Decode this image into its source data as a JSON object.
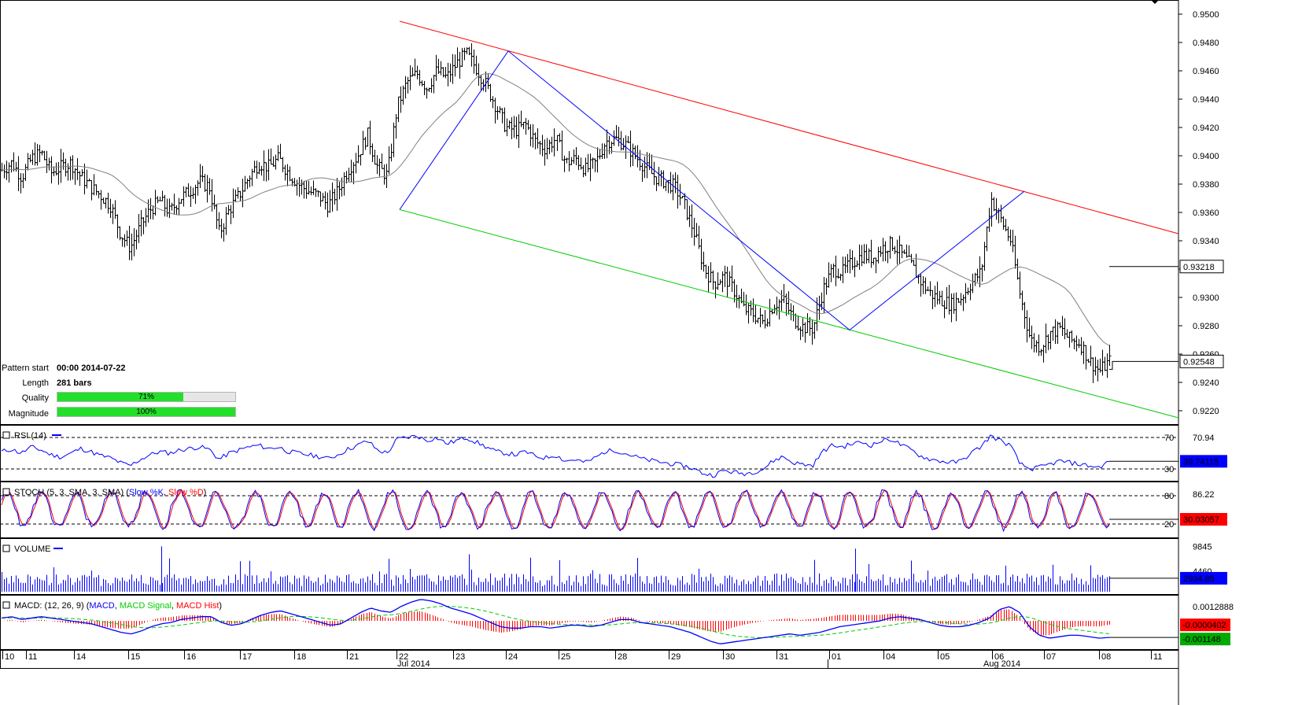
{
  "pattern_info": {
    "start_label": "Pattern start",
    "start_value": "00:00 2014-07-22",
    "length_label": "Length",
    "length_value": "281 bars",
    "quality_label": "Quality",
    "quality_value": 71,
    "quality_text": "71%",
    "magnitude_label": "Magnitude",
    "magnitude_value": 100,
    "magnitude_text": "100%"
  },
  "colors": {
    "price": "#000000",
    "channel_upper": "#ff0000",
    "channel_lower": "#00cc00",
    "zigzag": "#0000ff",
    "moving_average": "#808080",
    "rsi": "#0000ff",
    "stoch_k": "#0000ff",
    "stoch_d": "#ff0000",
    "volume": "#0000ff",
    "macd": "#0000ff",
    "macd_signal": "#00cc00",
    "macd_hist": "#ff0000",
    "label_box": "#0000ff",
    "label_box_red": "#ff0000",
    "label_box_green": "#00aa00",
    "quality_bar": "#22e02a"
  },
  "chart_data": [
    {
      "type": "candlestick",
      "panel": "price",
      "ylim": [
        0.921,
        0.951
      ],
      "yticks": [
        "0.9500",
        "0.9480",
        "0.9460",
        "0.9440",
        "0.9420",
        "0.9400",
        "0.9380",
        "0.9360",
        "0.9340",
        "0.9320",
        "0.9300",
        "0.9280",
        "0.9260",
        "0.9240",
        "0.9220"
      ],
      "last_price_label": "0.92548",
      "last_price": 0.92548,
      "ma_label": "0.93218",
      "ma_value": 0.93218,
      "channel_upper": [
        [
          0,
          0.9495
        ],
        [
          1,
          0.9345
        ]
      ],
      "channel_lower": [
        [
          0,
          0.9362
        ],
        [
          1,
          0.9215
        ]
      ],
      "zigzag": [
        0.9362,
        0.9474,
        0.9277,
        0.9375
      ],
      "price_path": [
        0.939,
        0.9395,
        0.9385,
        0.9398,
        0.9402,
        0.9388,
        0.9392,
        0.9395,
        0.9385,
        0.9378,
        0.9372,
        0.9365,
        0.9345,
        0.9335,
        0.935,
        0.9362,
        0.9368,
        0.936,
        0.937,
        0.9375,
        0.9382,
        0.9378,
        0.9345,
        0.9362,
        0.9372,
        0.9385,
        0.9395,
        0.9392,
        0.9398,
        0.9388,
        0.938,
        0.9375,
        0.9372,
        0.9365,
        0.9375,
        0.939,
        0.94,
        0.9415,
        0.9392,
        0.9386,
        0.9435,
        0.9452,
        0.9458,
        0.9448,
        0.946,
        0.9455,
        0.9465,
        0.9472,
        0.9462,
        0.945,
        0.9435,
        0.942,
        0.9418,
        0.9422,
        0.941,
        0.9405,
        0.9412,
        0.9395,
        0.9398,
        0.939,
        0.9395,
        0.941,
        0.9412,
        0.9408,
        0.94,
        0.9392,
        0.9385,
        0.9382,
        0.9378,
        0.9365,
        0.9345,
        0.932,
        0.931,
        0.9315,
        0.9305,
        0.9292,
        0.9288,
        0.9282,
        0.9295,
        0.9298,
        0.9285,
        0.9279,
        0.9278,
        0.9305,
        0.932,
        0.9318,
        0.9325,
        0.933,
        0.9328,
        0.9335,
        0.9338,
        0.933,
        0.9322,
        0.931,
        0.9302,
        0.9298,
        0.9295,
        0.93,
        0.931,
        0.9318,
        0.937,
        0.9355,
        0.934,
        0.93,
        0.927,
        0.9265,
        0.9275,
        0.9278,
        0.927,
        0.9268,
        0.9255,
        0.9248,
        0.9255
      ]
    },
    {
      "type": "line",
      "panel": "rsi",
      "label": "RSI (14)",
      "ylim": [
        20,
        80
      ],
      "levels": [
        "70",
        "30"
      ],
      "level_values": [
        70,
        30
      ],
      "right_top": "70.94",
      "current_label": "39.74115",
      "values": [
        52,
        55,
        50,
        58,
        54,
        48,
        45,
        50,
        56,
        52,
        47,
        44,
        38,
        34,
        42,
        48,
        52,
        50,
        54,
        56,
        58,
        55,
        42,
        50,
        54,
        58,
        60,
        56,
        58,
        52,
        50,
        48,
        46,
        43,
        48,
        55,
        60,
        66,
        54,
        50,
        68,
        70,
        72,
        66,
        70,
        62,
        66,
        70,
        64,
        58,
        52,
        50,
        48,
        52,
        46,
        44,
        48,
        40,
        42,
        38,
        44,
        52,
        54,
        50,
        46,
        42,
        40,
        38,
        36,
        34,
        30,
        24,
        22,
        28,
        26,
        24,
        26,
        30,
        40,
        46,
        38,
        36,
        34,
        52,
        60,
        58,
        62,
        64,
        60,
        66,
        68,
        60,
        54,
        46,
        42,
        40,
        38,
        40,
        50,
        58,
        72,
        66,
        60,
        36,
        30,
        32,
        36,
        40,
        38,
        36,
        34,
        32,
        39.7
      ]
    },
    {
      "type": "line",
      "panel": "stoch",
      "label": "STOCH (5, 3, SMA, 3, SMA)",
      "series_labels": [
        "Slow %K",
        "Slow %D"
      ],
      "ylim": [
        0,
        100
      ],
      "levels": [
        "80",
        "20"
      ],
      "level_values": [
        80,
        20
      ],
      "right_top": "86.22",
      "current_label": "30.03057"
    },
    {
      "type": "bar",
      "panel": "volume",
      "label": "VOLUME",
      "ylim": [
        0,
        11000
      ],
      "ticks": [
        "9845",
        "4460"
      ],
      "current_label": "2934.85",
      "current_value": 2934.85
    },
    {
      "type": "line",
      "panel": "macd",
      "label": "MACD: (12, 26, 9)",
      "series_labels": [
        "MACD",
        "MACD Signal",
        "MACD Hist"
      ],
      "ylim": [
        -0.0018,
        0.0016
      ],
      "tick_top": "0.0012888",
      "hist_label": "-0.0000402",
      "macd_label": "-0.001148",
      "values": [
        0.0002,
        0.0003,
        0.0001,
        0.0002,
        0.0003,
        0.0002,
        0.0001,
        0.0,
        -0.0001,
        -0.0002,
        -0.0004,
        -0.0006,
        -0.0008,
        -0.0009,
        -0.0007,
        -0.0004,
        -0.0002,
        -0.0001,
        0.0001,
        0.0002,
        0.0003,
        0.0003,
        -0.0001,
        -0.0003,
        -0.0002,
        0.0001,
        0.0004,
        0.0006,
        0.0007,
        0.0005,
        0.0003,
        0.0001,
        -0.0001,
        -0.0003,
        -0.0002,
        0.0002,
        0.0006,
        0.0009,
        0.0007,
        0.0006,
        0.001,
        0.0013,
        0.0015,
        0.0014,
        0.0012,
        0.0009,
        0.0007,
        0.0005,
        0.0002,
        -0.0001,
        -0.0004,
        -0.0005,
        -0.0005,
        -0.0004,
        -0.0004,
        -0.0005,
        -0.0004,
        -0.0003,
        -0.0003,
        -0.0004,
        -0.0003,
        -0.0001,
        0.0001,
        0.0001,
        -0.0001,
        -0.0002,
        -0.0003,
        -0.0004,
        -0.0006,
        -0.0008,
        -0.0011,
        -0.0014,
        -0.0016,
        -0.0015,
        -0.0014,
        -0.0013,
        -0.0012,
        -0.0011,
        -0.001,
        -0.0009,
        -0.001,
        -0.0009,
        -0.0008,
        -0.0006,
        -0.0004,
        -0.0003,
        -0.0002,
        -0.0001,
        0.0,
        0.0002,
        0.0003,
        0.0002,
        0.0001,
        -0.0001,
        -0.0003,
        -0.0004,
        -0.0004,
        -0.0003,
        -0.0001,
        0.0002,
        0.0008,
        0.001,
        0.0006,
        -0.0004,
        -0.001,
        -0.0012,
        -0.0011,
        -0.001,
        -0.001,
        -0.0011,
        -0.0012,
        -0.00115
      ]
    }
  ],
  "x_axis": {
    "day_ticks": [
      "10",
      "11",
      "14",
      "15",
      "16",
      "17",
      "18",
      "21",
      "22",
      "23",
      "24",
      "25",
      "28",
      "29",
      "30",
      "31",
      "01",
      "04",
      "05",
      "06",
      "07",
      "08",
      "11"
    ],
    "months": [
      "Jul 2014",
      "Aug 2014"
    ]
  }
}
